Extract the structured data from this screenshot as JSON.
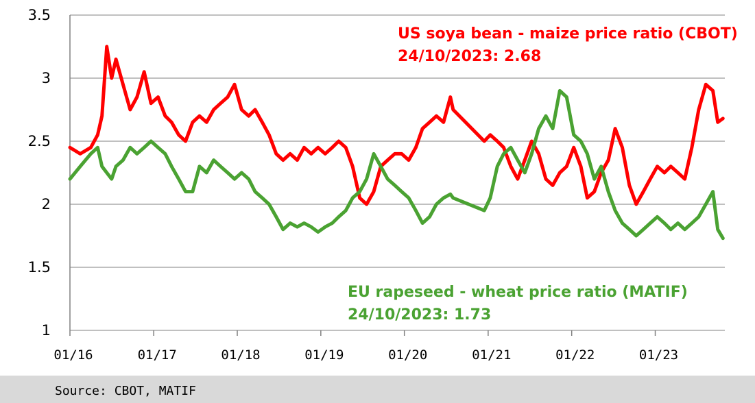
{
  "chart_data": {
    "type": "line",
    "title": "",
    "xlabel": "",
    "ylabel": "",
    "ylim": [
      1,
      3.5
    ],
    "yticks": [
      "1",
      "1.5",
      "2",
      "2.5",
      "3",
      "3.5"
    ],
    "xticks": [
      "01/16",
      "01/17",
      "01/18",
      "01/19",
      "01/20",
      "01/21",
      "01/22",
      "01/23"
    ],
    "grid": "horizontal",
    "series": [
      {
        "name": "US soya bean - maize price ratio (CBOT)",
        "color": "#ff0000",
        "label_line1": "US soya bean - maize price ratio (CBOT)",
        "label_line2": "24/10/2023: 2.68",
        "points": [
          [
            "2016-01-01",
            2.45
          ],
          [
            "2016-02-15",
            2.4
          ],
          [
            "2016-04-01",
            2.45
          ],
          [
            "2016-05-01",
            2.55
          ],
          [
            "2016-05-20",
            2.7
          ],
          [
            "2016-06-10",
            3.25
          ],
          [
            "2016-07-01",
            3.0
          ],
          [
            "2016-07-20",
            3.15
          ],
          [
            "2016-08-20",
            2.95
          ],
          [
            "2016-09-20",
            2.75
          ],
          [
            "2016-10-20",
            2.85
          ],
          [
            "2016-11-20",
            3.05
          ],
          [
            "2016-12-20",
            2.8
          ],
          [
            "2017-01-20",
            2.85
          ],
          [
            "2017-02-20",
            2.7
          ],
          [
            "2017-03-20",
            2.65
          ],
          [
            "2017-04-20",
            2.55
          ],
          [
            "2017-05-20",
            2.5
          ],
          [
            "2017-06-20",
            2.65
          ],
          [
            "2017-07-20",
            2.7
          ],
          [
            "2017-08-20",
            2.65
          ],
          [
            "2017-09-20",
            2.75
          ],
          [
            "2017-10-20",
            2.8
          ],
          [
            "2017-11-20",
            2.85
          ],
          [
            "2017-12-20",
            2.95
          ],
          [
            "2018-01-20",
            2.75
          ],
          [
            "2018-02-20",
            2.7
          ],
          [
            "2018-03-20",
            2.75
          ],
          [
            "2018-04-20",
            2.65
          ],
          [
            "2018-05-20",
            2.55
          ],
          [
            "2018-06-20",
            2.4
          ],
          [
            "2018-07-20",
            2.35
          ],
          [
            "2018-08-20",
            2.4
          ],
          [
            "2018-09-20",
            2.35
          ],
          [
            "2018-10-20",
            2.45
          ],
          [
            "2018-11-20",
            2.4
          ],
          [
            "2018-12-20",
            2.45
          ],
          [
            "2019-01-20",
            2.4
          ],
          [
            "2019-02-20",
            2.45
          ],
          [
            "2019-03-20",
            2.5
          ],
          [
            "2019-04-20",
            2.45
          ],
          [
            "2019-05-20",
            2.3
          ],
          [
            "2019-06-20",
            2.05
          ],
          [
            "2019-07-20",
            2.0
          ],
          [
            "2019-08-20",
            2.1
          ],
          [
            "2019-09-20",
            2.3
          ],
          [
            "2019-10-20",
            2.35
          ],
          [
            "2019-11-20",
            2.4
          ],
          [
            "2019-12-20",
            2.4
          ],
          [
            "2020-01-20",
            2.35
          ],
          [
            "2020-02-20",
            2.45
          ],
          [
            "2020-03-20",
            2.6
          ],
          [
            "2020-04-20",
            2.65
          ],
          [
            "2020-05-20",
            2.7
          ],
          [
            "2020-06-20",
            2.65
          ],
          [
            "2020-07-20",
            2.85
          ],
          [
            "2020-08-01",
            2.75
          ],
          [
            "2020-12-15",
            2.5
          ],
          [
            "2021-01-10",
            2.55
          ],
          [
            "2021-02-10",
            2.5
          ],
          [
            "2021-03-10",
            2.45
          ],
          [
            "2021-04-10",
            2.3
          ],
          [
            "2021-05-10",
            2.2
          ],
          [
            "2021-06-10",
            2.35
          ],
          [
            "2021-07-10",
            2.5
          ],
          [
            "2021-08-10",
            2.4
          ],
          [
            "2021-09-10",
            2.2
          ],
          [
            "2021-10-10",
            2.15
          ],
          [
            "2021-11-10",
            2.25
          ],
          [
            "2021-12-10",
            2.3
          ],
          [
            "2022-01-10",
            2.45
          ],
          [
            "2022-02-10",
            2.3
          ],
          [
            "2022-03-10",
            2.05
          ],
          [
            "2022-04-10",
            2.1
          ],
          [
            "2022-05-10",
            2.25
          ],
          [
            "2022-06-10",
            2.35
          ],
          [
            "2022-07-10",
            2.6
          ],
          [
            "2022-08-10",
            2.45
          ],
          [
            "2022-09-10",
            2.15
          ],
          [
            "2022-10-10",
            2.0
          ],
          [
            "2022-11-10",
            2.1
          ],
          [
            "2022-12-10",
            2.2
          ],
          [
            "2023-01-10",
            2.3
          ],
          [
            "2023-02-10",
            2.25
          ],
          [
            "2023-03-10",
            2.3
          ],
          [
            "2023-04-10",
            2.25
          ],
          [
            "2023-05-10",
            2.2
          ],
          [
            "2023-06-10",
            2.45
          ],
          [
            "2023-07-10",
            2.75
          ],
          [
            "2023-08-10",
            2.95
          ],
          [
            "2023-09-10",
            2.9
          ],
          [
            "2023-10-01",
            2.65
          ],
          [
            "2023-10-24",
            2.68
          ]
        ]
      },
      {
        "name": "EU rapeseed - wheat price ratio (MATIF)",
        "color": "#4aa232",
        "label_line1": "EU rapeseed - wheat price ratio (MATIF)",
        "label_line2": "24/10/2023: 1.73",
        "points": [
          [
            "2016-01-01",
            2.2
          ],
          [
            "2016-02-15",
            2.3
          ],
          [
            "2016-04-01",
            2.4
          ],
          [
            "2016-05-01",
            2.45
          ],
          [
            "2016-05-20",
            2.3
          ],
          [
            "2016-06-10",
            2.25
          ],
          [
            "2016-07-01",
            2.2
          ],
          [
            "2016-07-20",
            2.3
          ],
          [
            "2016-08-20",
            2.35
          ],
          [
            "2016-09-20",
            2.45
          ],
          [
            "2016-10-20",
            2.4
          ],
          [
            "2016-11-20",
            2.45
          ],
          [
            "2016-12-20",
            2.5
          ],
          [
            "2017-01-20",
            2.45
          ],
          [
            "2017-02-20",
            2.4
          ],
          [
            "2017-03-20",
            2.3
          ],
          [
            "2017-04-20",
            2.2
          ],
          [
            "2017-05-20",
            2.1
          ],
          [
            "2017-06-20",
            2.1
          ],
          [
            "2017-07-20",
            2.3
          ],
          [
            "2017-08-20",
            2.25
          ],
          [
            "2017-09-20",
            2.35
          ],
          [
            "2017-10-20",
            2.3
          ],
          [
            "2017-11-20",
            2.25
          ],
          [
            "2017-12-20",
            2.2
          ],
          [
            "2018-01-20",
            2.25
          ],
          [
            "2018-02-20",
            2.2
          ],
          [
            "2018-03-20",
            2.1
          ],
          [
            "2018-04-20",
            2.05
          ],
          [
            "2018-05-20",
            2.0
          ],
          [
            "2018-06-20",
            1.9
          ],
          [
            "2018-07-20",
            1.8
          ],
          [
            "2018-08-20",
            1.85
          ],
          [
            "2018-09-20",
            1.82
          ],
          [
            "2018-10-20",
            1.85
          ],
          [
            "2018-11-20",
            1.82
          ],
          [
            "2018-12-20",
            1.78
          ],
          [
            "2019-01-20",
            1.82
          ],
          [
            "2019-02-20",
            1.85
          ],
          [
            "2019-03-20",
            1.9
          ],
          [
            "2019-04-20",
            1.95
          ],
          [
            "2019-05-20",
            2.05
          ],
          [
            "2019-06-20",
            2.1
          ],
          [
            "2019-07-20",
            2.2
          ],
          [
            "2019-08-20",
            2.4
          ],
          [
            "2019-09-20",
            2.3
          ],
          [
            "2019-10-20",
            2.2
          ],
          [
            "2019-11-20",
            2.15
          ],
          [
            "2019-12-20",
            2.1
          ],
          [
            "2020-01-20",
            2.05
          ],
          [
            "2020-02-20",
            1.95
          ],
          [
            "2020-03-20",
            1.85
          ],
          [
            "2020-04-20",
            1.9
          ],
          [
            "2020-05-20",
            2.0
          ],
          [
            "2020-06-20",
            2.05
          ],
          [
            "2020-07-20",
            2.08
          ],
          [
            "2020-08-01",
            2.05
          ],
          [
            "2020-12-15",
            1.95
          ],
          [
            "2021-01-10",
            2.05
          ],
          [
            "2021-02-10",
            2.3
          ],
          [
            "2021-03-10",
            2.4
          ],
          [
            "2021-04-10",
            2.45
          ],
          [
            "2021-05-10",
            2.35
          ],
          [
            "2021-06-10",
            2.25
          ],
          [
            "2021-07-10",
            2.4
          ],
          [
            "2021-08-10",
            2.6
          ],
          [
            "2021-09-10",
            2.7
          ],
          [
            "2021-10-10",
            2.6
          ],
          [
            "2021-11-10",
            2.9
          ],
          [
            "2021-12-10",
            2.85
          ],
          [
            "2022-01-10",
            2.55
          ],
          [
            "2022-02-10",
            2.5
          ],
          [
            "2022-03-10",
            2.4
          ],
          [
            "2022-04-10",
            2.2
          ],
          [
            "2022-05-10",
            2.3
          ],
          [
            "2022-06-10",
            2.1
          ],
          [
            "2022-07-10",
            1.95
          ],
          [
            "2022-08-10",
            1.85
          ],
          [
            "2022-09-10",
            1.8
          ],
          [
            "2022-10-10",
            1.75
          ],
          [
            "2022-11-10",
            1.8
          ],
          [
            "2022-12-10",
            1.85
          ],
          [
            "2023-01-10",
            1.9
          ],
          [
            "2023-02-10",
            1.85
          ],
          [
            "2023-03-10",
            1.8
          ],
          [
            "2023-04-10",
            1.85
          ],
          [
            "2023-05-10",
            1.8
          ],
          [
            "2023-06-10",
            1.85
          ],
          [
            "2023-07-10",
            1.9
          ],
          [
            "2023-08-10",
            2.0
          ],
          [
            "2023-09-10",
            2.1
          ],
          [
            "2023-10-01",
            1.8
          ],
          [
            "2023-10-24",
            1.73
          ]
        ]
      }
    ]
  },
  "source": "Source: CBOT, MATIF"
}
